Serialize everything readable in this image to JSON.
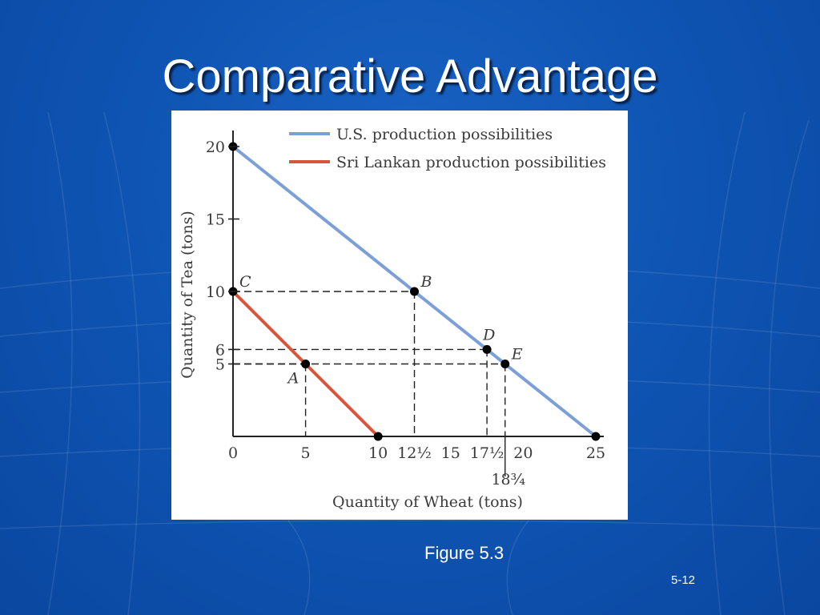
{
  "slide": {
    "title": "Comparative Advantage",
    "caption": "Figure 5.3",
    "slide_number": "5-12"
  },
  "colors": {
    "background": "#0f55b4",
    "us_line": "#7b9fd6",
    "sri_lanka_line": "#d9553a",
    "point": "#000000"
  },
  "chart_data": {
    "type": "line",
    "title": "",
    "xlabel": "Quantity of Wheat (tons)",
    "ylabel": "Quantity of Tea (tons)",
    "xlim": [
      0,
      25
    ],
    "ylim": [
      0,
      20
    ],
    "grid": false,
    "legend_position": "top-right",
    "x_ticks": [
      {
        "value": 0,
        "label": "0"
      },
      {
        "value": 5,
        "label": "5"
      },
      {
        "value": 10,
        "label": "10"
      },
      {
        "value": 12.5,
        "label": "12½"
      },
      {
        "value": 15,
        "label": "15"
      },
      {
        "value": 17.5,
        "label": "17½"
      },
      {
        "value": 20,
        "label": "20"
      },
      {
        "value": 25,
        "label": "25"
      }
    ],
    "x_ticks_extra": [
      {
        "value": 18.75,
        "label": "18¾"
      }
    ],
    "y_ticks": [
      {
        "value": 20,
        "label": "20"
      },
      {
        "value": 15,
        "label": "15"
      },
      {
        "value": 10,
        "label": "10"
      },
      {
        "value": 6,
        "label": "6"
      },
      {
        "value": 5,
        "label": "5"
      }
    ],
    "series": [
      {
        "name": "U.S. production possibilities",
        "x": [
          0,
          25
        ],
        "y": [
          20,
          0
        ],
        "color": "#7b9fd6"
      },
      {
        "name": "Sri Lankan production possibilities",
        "x": [
          0,
          10
        ],
        "y": [
          10,
          0
        ],
        "color": "#d9553a"
      }
    ],
    "endpoints": [
      {
        "x": 0,
        "y": 20
      },
      {
        "x": 25,
        "y": 0
      },
      {
        "x": 10,
        "y": 0
      }
    ],
    "points": [
      {
        "label": "A",
        "x": 5,
        "y": 5,
        "label_side": "left-below"
      },
      {
        "label": "B",
        "x": 12.5,
        "y": 10,
        "label_side": "right-above"
      },
      {
        "label": "C",
        "x": 0,
        "y": 10,
        "label_side": "right-above"
      },
      {
        "label": "D",
        "x": 17.5,
        "y": 6,
        "label_side": "above"
      },
      {
        "label": "E",
        "x": 18.75,
        "y": 5,
        "label_side": "right-above"
      }
    ],
    "dashed_guides": [
      {
        "x": 12.5,
        "y": 10
      },
      {
        "x": 17.5,
        "y": 6
      },
      {
        "x": 18.75,
        "y": 5
      },
      {
        "x": 5,
        "y": 5
      }
    ]
  }
}
